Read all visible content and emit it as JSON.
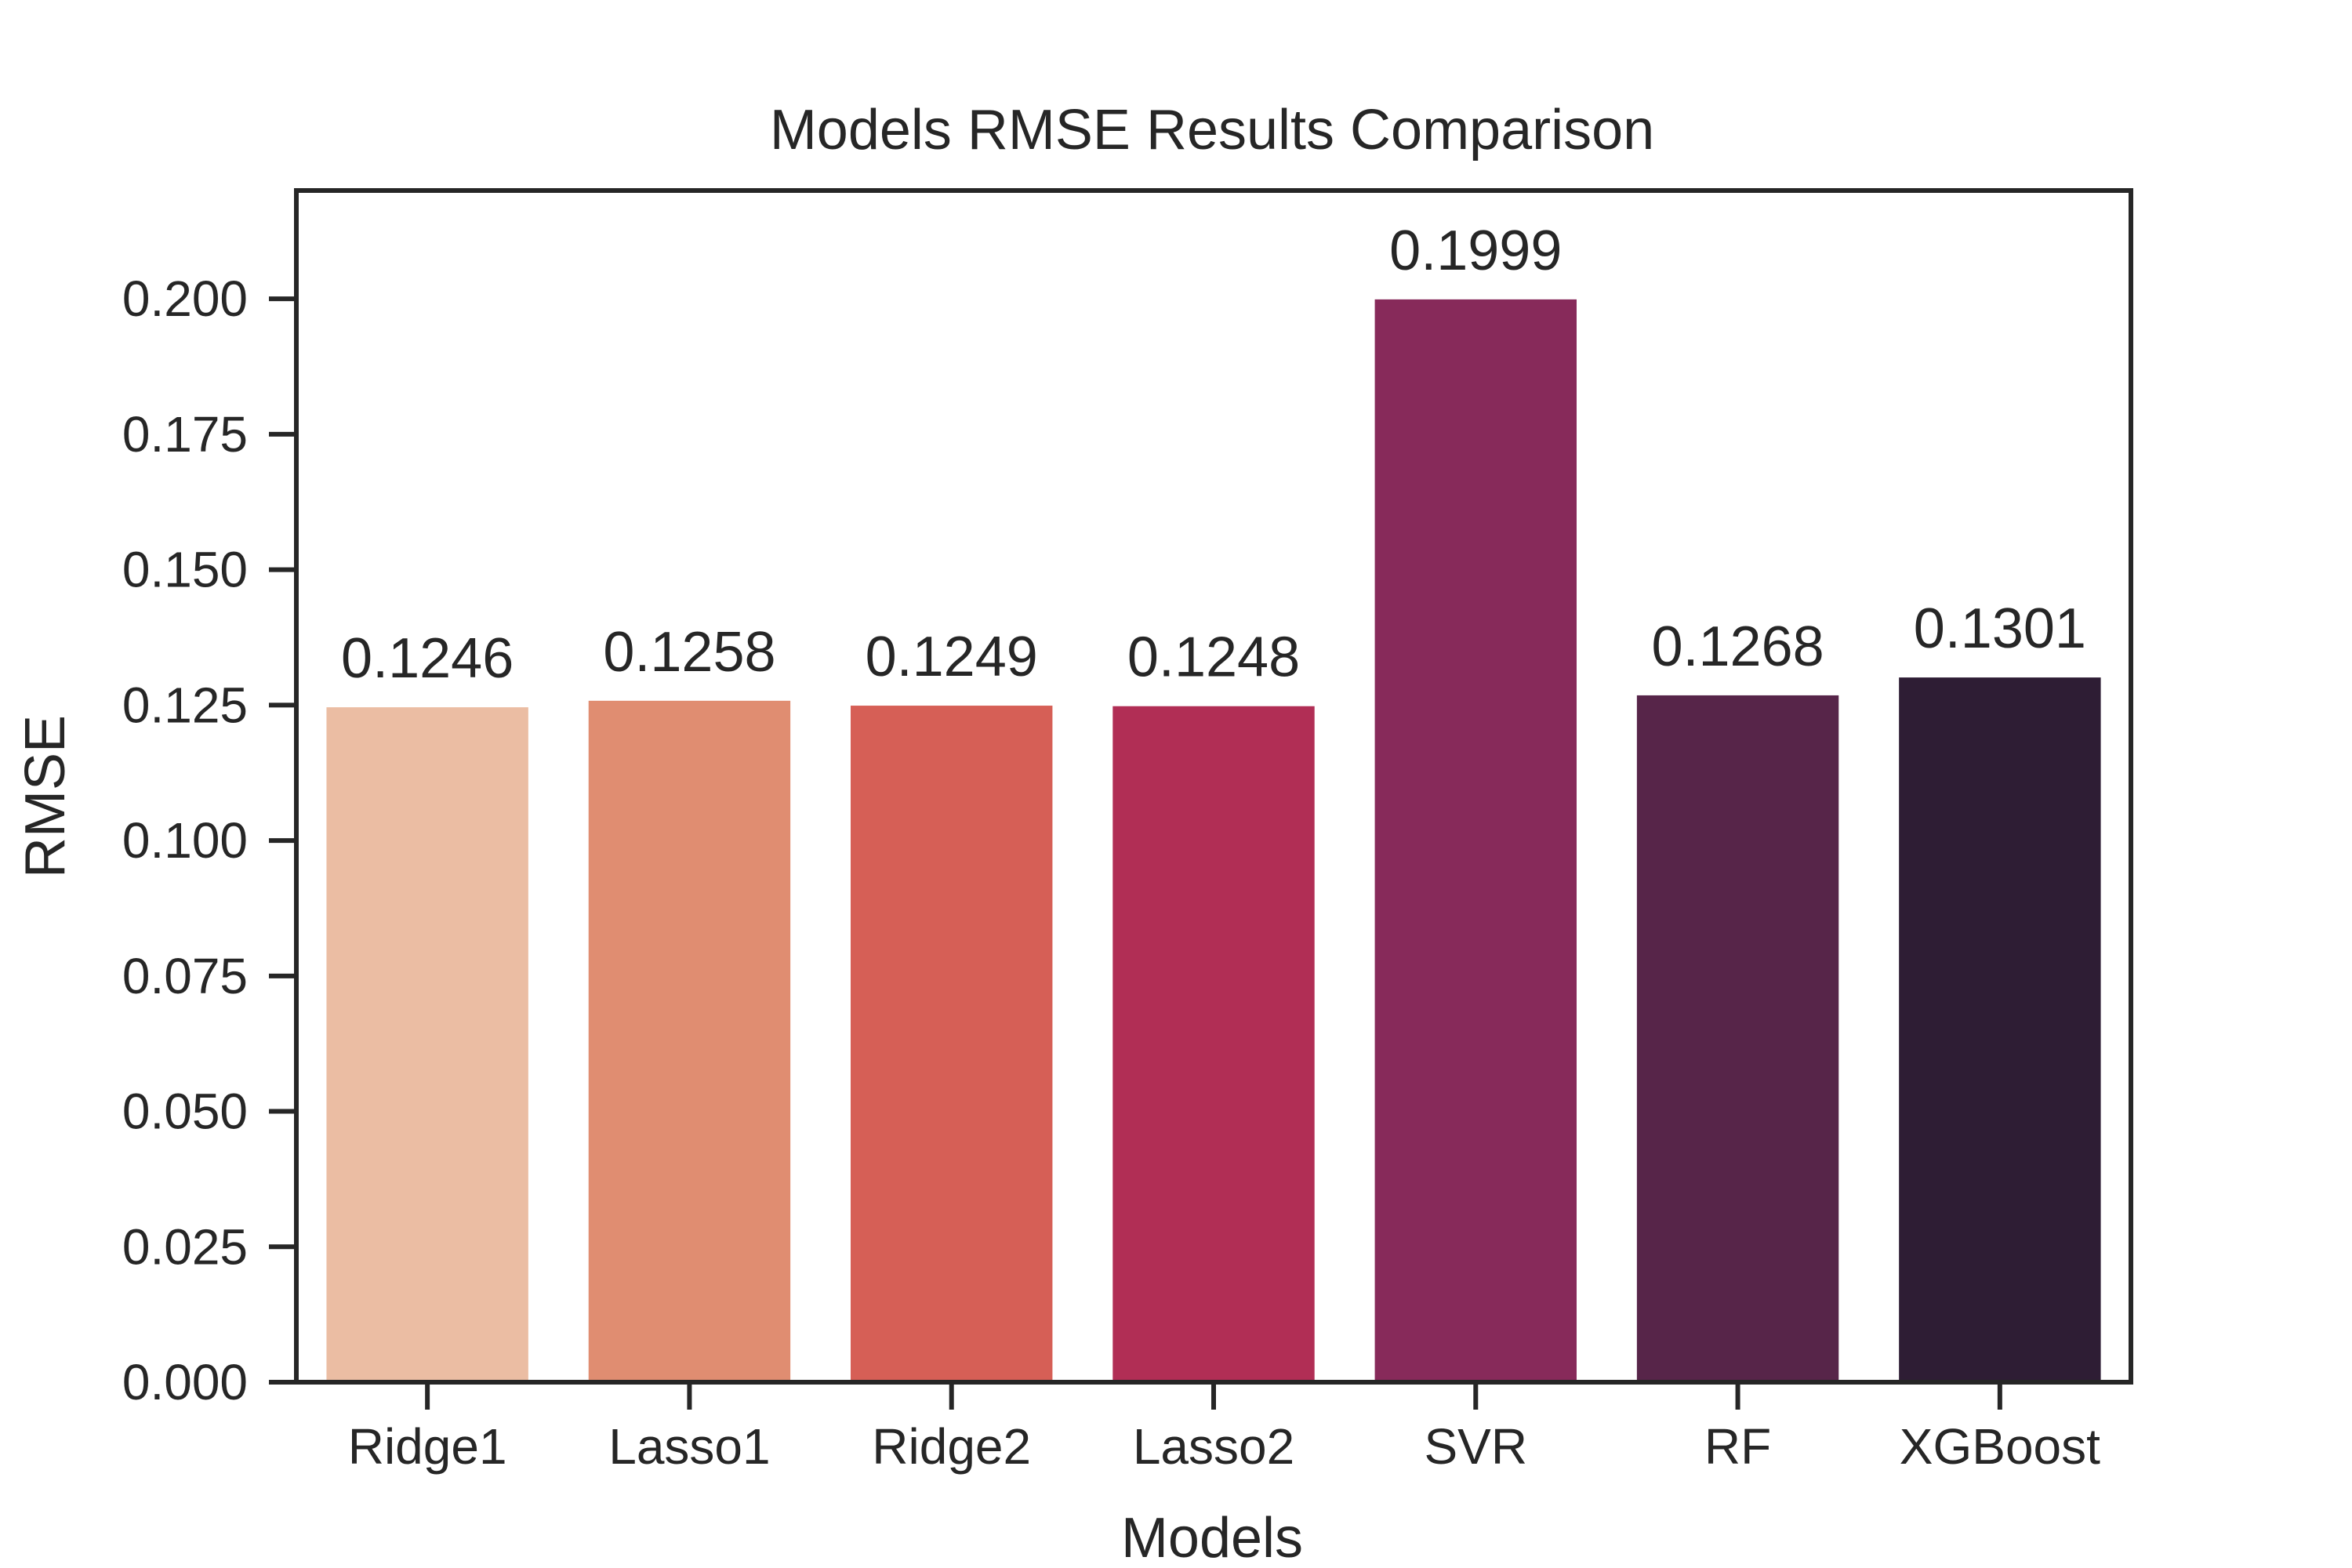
{
  "chart_data": {
    "type": "bar",
    "title": "Models RMSE Results Comparison",
    "xlabel": "Models",
    "ylabel": "RMSE",
    "categories": [
      "Ridge1",
      "Lasso1",
      "Ridge2",
      "Lasso2",
      "SVR",
      "RF",
      "XGBoost"
    ],
    "values": [
      0.1246,
      0.1258,
      0.1249,
      0.1248,
      0.1999,
      0.1268,
      0.1301
    ],
    "value_labels": [
      "0.1246",
      "0.1258",
      "0.1249",
      "0.1248",
      "0.1999",
      "0.1268",
      "0.1301"
    ],
    "colors": [
      "#ebbda3",
      "#e08d71",
      "#d65f56",
      "#b12e55",
      "#872a5a",
      "#572549",
      "#2e1d34"
    ],
    "ylim": [
      0,
      0.22
    ],
    "yticks": [
      0.0,
      0.025,
      0.05,
      0.075,
      0.1,
      0.125,
      0.15,
      0.175,
      0.2
    ],
    "ytick_labels": [
      "0.000",
      "0.025",
      "0.050",
      "0.075",
      "0.100",
      "0.125",
      "0.150",
      "0.175",
      "0.200"
    ],
    "grid": false,
    "legend": "none"
  },
  "style": {
    "axis_color": "#262626",
    "text_color": "#262626",
    "background": "#ffffff"
  }
}
